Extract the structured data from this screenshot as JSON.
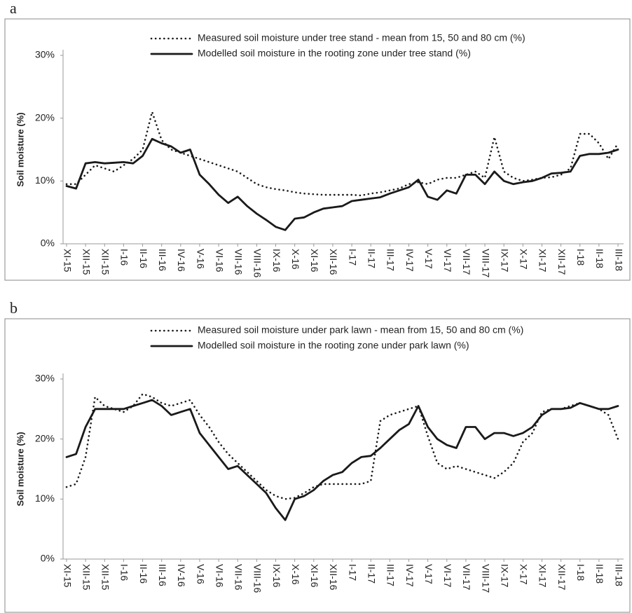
{
  "chart_data": [
    {
      "type": "line",
      "panel": "a",
      "ylabel": "Soil moisture (%)",
      "ylim": [
        0,
        30
      ],
      "yticks": [
        {
          "value": 0,
          "label": "0%"
        },
        {
          "value": 10,
          "label": "10%"
        },
        {
          "value": 20,
          "label": "20%"
        },
        {
          "value": 30,
          "label": "30%"
        }
      ],
      "categories": [
        "XI-15",
        null,
        "XII-15",
        null,
        "XII-15",
        null,
        "I-16",
        null,
        "II-16",
        null,
        "III-16",
        null,
        "IV-16",
        null,
        "V-16",
        null,
        "VI-16",
        null,
        "VII-16",
        null,
        "VIII-16",
        null,
        "IX-16",
        null,
        "X-16",
        null,
        "XI-16",
        null,
        "XII-16",
        null,
        "I-17",
        null,
        "II-17",
        null,
        "III-17",
        null,
        "IV-17",
        null,
        "V-17",
        null,
        "VI-17",
        null,
        "VII-17",
        null,
        "VIII-17",
        null,
        "IX-17",
        null,
        "X-17",
        null,
        "XI-17",
        null,
        "XII-17",
        null,
        "I-18",
        null,
        "II-18",
        null,
        "III-18"
      ],
      "series": [
        {
          "name": "Measured soil moisture under tree stand - mean from 15, 50 and 80 cm (%)",
          "color": "#1a1a1a",
          "style": "dotted",
          "values": [
            9.5,
            9.5,
            11,
            12.5,
            12,
            11.5,
            12.5,
            13.5,
            15,
            21,
            16.5,
            15,
            14.5,
            14,
            13.5,
            13,
            12.5,
            12,
            11.5,
            10.5,
            9.5,
            9,
            8.7,
            8.5,
            8.2,
            8,
            7.9,
            7.8,
            7.8,
            7.8,
            7.8,
            7.7,
            8,
            8.2,
            8.5,
            8.8,
            9.5,
            9.8,
            9.5,
            10.2,
            10.5,
            10.5,
            11,
            11.5,
            10.5,
            17,
            11.5,
            10.5,
            10,
            10.2,
            10.5,
            10.6,
            11,
            12,
            17.5,
            17.5,
            16,
            13.5,
            16
          ]
        },
        {
          "name": "Modelled soil moisture in the rooting zone under tree stand (%)",
          "color": "#1a1a1a",
          "style": "solid",
          "values": [
            9.2,
            8.8,
            12.8,
            13,
            12.8,
            12.9,
            13,
            12.8,
            14,
            16.7,
            16,
            15.5,
            14.5,
            15,
            11,
            9.5,
            7.8,
            6.5,
            7.5,
            6,
            4.8,
            3.8,
            2.7,
            2.2,
            4,
            4.2,
            5,
            5.6,
            5.8,
            6,
            6.8,
            7,
            7.2,
            7.4,
            8,
            8.5,
            9,
            10.2,
            7.5,
            7,
            8.5,
            8,
            11,
            11,
            9.5,
            11.5,
            10,
            9.5,
            9.8,
            10,
            10.5,
            11.2,
            11.3,
            11.5,
            14,
            14.3,
            14.3,
            14.5,
            15
          ]
        }
      ]
    },
    {
      "type": "line",
      "panel": "b",
      "ylabel": "Soil moisture (%)",
      "ylim": [
        0,
        30
      ],
      "yticks": [
        {
          "value": 0,
          "label": "0%"
        },
        {
          "value": 10,
          "label": "10%"
        },
        {
          "value": 20,
          "label": "20%"
        },
        {
          "value": 30,
          "label": "30%"
        }
      ],
      "categories": [
        "XI-15",
        null,
        "XII-15",
        null,
        "XII-15",
        null,
        "I-16",
        null,
        "II-16",
        null,
        "III-16",
        null,
        "IV-16",
        null,
        "V-16",
        null,
        "VI-16",
        null,
        "VII-16",
        null,
        "VIII-16",
        null,
        "IX-16",
        null,
        "X-16",
        null,
        "XI-16",
        null,
        "XII-16",
        null,
        "I-17",
        null,
        "II-17",
        null,
        "III-17",
        null,
        "IV-17",
        null,
        "V-17",
        null,
        "VI-17",
        null,
        "VII-17",
        null,
        "VIII-17",
        null,
        "IX-17",
        null,
        "X-17",
        null,
        "XI-17",
        null,
        "XII-17",
        null,
        "I-18",
        null,
        "II-18",
        null,
        "III-18"
      ],
      "series": [
        {
          "name": "Measured soil moisture under park lawn - mean from 15, 50 and 80 cm (%)",
          "color": "#1a1a1a",
          "style": "dotted",
          "values": [
            12,
            12.5,
            17,
            27,
            25.5,
            25,
            24.5,
            25.5,
            27.5,
            27,
            26,
            25.5,
            26,
            26.5,
            24,
            22,
            19.5,
            17.5,
            16,
            14.5,
            13,
            11.5,
            10.5,
            10,
            10.2,
            11,
            12,
            12.5,
            12.5,
            12.5,
            12.5,
            12.5,
            13,
            23,
            24,
            24.5,
            25,
            25.5,
            20.5,
            16,
            15,
            15.5,
            15,
            14.5,
            14,
            13.5,
            14.5,
            16,
            19.5,
            21,
            24.5,
            25,
            25,
            25.5,
            26,
            25.5,
            25,
            24,
            20
          ]
        },
        {
          "name": "Modelled soil moisture in the rooting zone under park lawn (%)",
          "color": "#1a1a1a",
          "style": "solid",
          "values": [
            17,
            17.5,
            22,
            25,
            25,
            25,
            25,
            25.5,
            26,
            26.5,
            25.5,
            24,
            24.5,
            25,
            21,
            19,
            17,
            15,
            15.5,
            14,
            12.5,
            11,
            8.5,
            6.5,
            10,
            10.5,
            11.5,
            13,
            14,
            14.5,
            16,
            17,
            17.2,
            18.5,
            20,
            21.5,
            22.5,
            25.5,
            22,
            20,
            19,
            18.5,
            22,
            22,
            20,
            21,
            21,
            20.5,
            21,
            22,
            24,
            25,
            25,
            25.2,
            26,
            25.5,
            25,
            25,
            25.5
          ]
        }
      ]
    }
  ]
}
